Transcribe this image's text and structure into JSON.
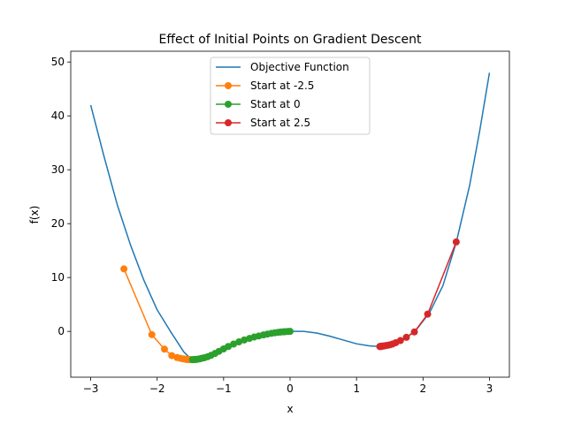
{
  "chart_data": {
    "type": "line",
    "title": "Effect of Initial Points on Gradient Descent",
    "xlabel": "x",
    "ylabel": "f(x)",
    "xlim": [
      -3.3,
      3.3
    ],
    "ylim": [
      -8.5,
      52
    ],
    "xticks": [
      -3,
      -2,
      -1,
      0,
      1,
      2,
      3
    ],
    "yticks": [
      0,
      10,
      20,
      30,
      40,
      50
    ],
    "legend_position": "upper center",
    "grid": false,
    "series": [
      {
        "name": "Objective Function",
        "kind": "line",
        "color": "#1f77b4",
        "points": [
          [
            -3.0,
            42.0
          ],
          [
            -2.8,
            32.5
          ],
          [
            -2.6,
            23.5
          ],
          [
            -2.4,
            16.0
          ],
          [
            -2.2,
            9.5
          ],
          [
            -2.0,
            4.0
          ],
          [
            -1.8,
            0.0
          ],
          [
            -1.6,
            -3.8
          ],
          [
            -1.5,
            -5.0
          ],
          [
            -1.4,
            -5.1
          ],
          [
            -1.2,
            -4.6
          ],
          [
            -1.0,
            -3.5
          ],
          [
            -0.8,
            -2.2
          ],
          [
            -0.6,
            -1.2
          ],
          [
            -0.4,
            -0.5
          ],
          [
            -0.2,
            -0.1
          ],
          [
            0.0,
            0.0
          ],
          [
            0.2,
            0.0
          ],
          [
            0.4,
            -0.3
          ],
          [
            0.6,
            -0.9
          ],
          [
            0.8,
            -1.6
          ],
          [
            1.0,
            -2.3
          ],
          [
            1.2,
            -2.7
          ],
          [
            1.35,
            -2.8
          ],
          [
            1.5,
            -2.6
          ],
          [
            1.7,
            -1.6
          ],
          [
            1.9,
            0.3
          ],
          [
            2.1,
            3.5
          ],
          [
            2.3,
            8.5
          ],
          [
            2.5,
            16.5
          ],
          [
            2.7,
            27.0
          ],
          [
            2.85,
            37.0
          ],
          [
            3.0,
            48.0
          ]
        ]
      },
      {
        "name": "Start at -2.5",
        "kind": "line-marker",
        "color": "#ff7f0e",
        "points": [
          [
            -2.5,
            11.6
          ],
          [
            -2.08,
            -0.6
          ],
          [
            -1.89,
            -3.3
          ],
          [
            -1.78,
            -4.5
          ],
          [
            -1.7,
            -4.85
          ],
          [
            -1.65,
            -5.0
          ],
          [
            -1.61,
            -5.1
          ],
          [
            -1.58,
            -5.15
          ],
          [
            -1.56,
            -5.2
          ],
          [
            -1.54,
            -5.2
          ],
          [
            -1.53,
            -5.2
          ],
          [
            -1.52,
            -5.25
          ],
          [
            -1.51,
            -5.25
          ],
          [
            -1.5,
            -5.25
          ]
        ]
      },
      {
        "name": "Start at 0",
        "kind": "line-marker",
        "color": "#2ca02c",
        "points": [
          [
            0.0,
            0.0
          ],
          [
            -0.03,
            -0.02
          ],
          [
            -0.07,
            -0.05
          ],
          [
            -0.1,
            -0.08
          ],
          [
            -0.14,
            -0.12
          ],
          [
            -0.18,
            -0.18
          ],
          [
            -0.23,
            -0.26
          ],
          [
            -0.28,
            -0.36
          ],
          [
            -0.34,
            -0.5
          ],
          [
            -0.4,
            -0.65
          ],
          [
            -0.47,
            -0.85
          ],
          [
            -0.54,
            -1.05
          ],
          [
            -0.61,
            -1.3
          ],
          [
            -0.69,
            -1.6
          ],
          [
            -0.77,
            -1.95
          ],
          [
            -0.85,
            -2.35
          ],
          [
            -0.93,
            -2.8
          ],
          [
            -1.0,
            -3.25
          ],
          [
            -1.07,
            -3.7
          ],
          [
            -1.13,
            -4.1
          ],
          [
            -1.19,
            -4.45
          ],
          [
            -1.24,
            -4.7
          ],
          [
            -1.29,
            -4.9
          ],
          [
            -1.33,
            -5.0
          ],
          [
            -1.36,
            -5.1
          ],
          [
            -1.39,
            -5.15
          ],
          [
            -1.41,
            -5.2
          ],
          [
            -1.43,
            -5.2
          ],
          [
            -1.45,
            -5.25
          ],
          [
            -1.47,
            -5.25
          ]
        ]
      },
      {
        "name": "Start at 2.5",
        "kind": "line-marker",
        "color": "#d62728",
        "points": [
          [
            2.5,
            16.6
          ],
          [
            2.07,
            3.2
          ],
          [
            1.87,
            -0.1
          ],
          [
            1.75,
            -1.1
          ],
          [
            1.66,
            -1.7
          ],
          [
            1.59,
            -2.1
          ],
          [
            1.54,
            -2.35
          ],
          [
            1.5,
            -2.5
          ],
          [
            1.46,
            -2.6
          ],
          [
            1.43,
            -2.65
          ],
          [
            1.41,
            -2.7
          ],
          [
            1.39,
            -2.75
          ],
          [
            1.38,
            -2.75
          ],
          [
            1.37,
            -2.8
          ],
          [
            1.36,
            -2.8
          ],
          [
            1.355,
            -2.8
          ],
          [
            1.35,
            -2.8
          ]
        ]
      }
    ]
  }
}
